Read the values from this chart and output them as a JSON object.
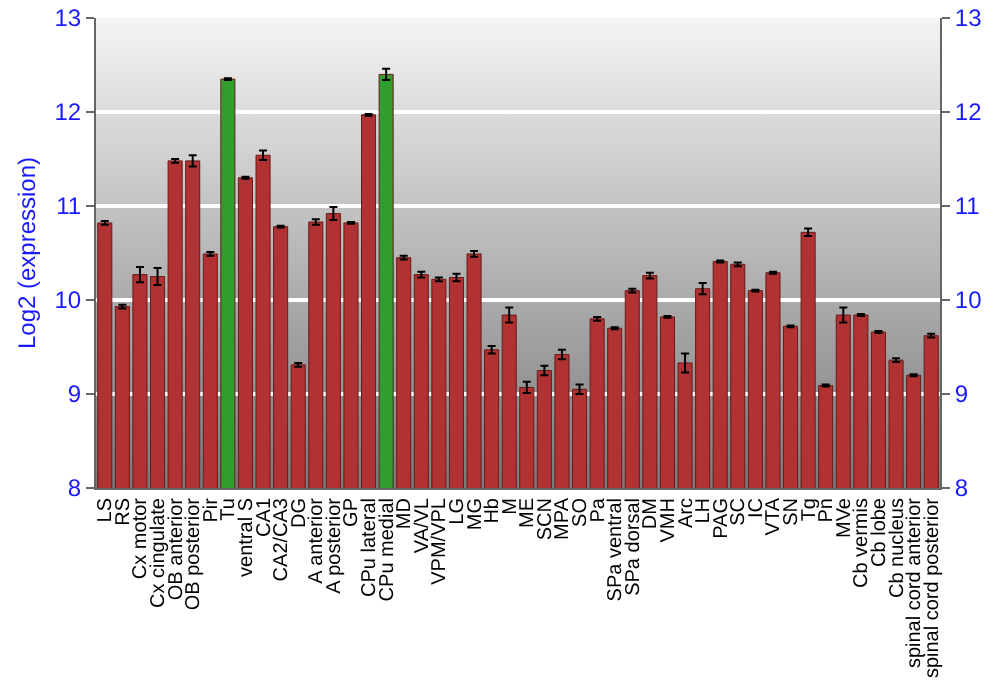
{
  "chart_data": {
    "type": "bar",
    "ylabel": "Log2 (expression)",
    "categories": [
      "LS",
      "RS",
      "Cx motor",
      "Cx cingulate",
      "OB anterior",
      "OB posterior",
      "Pir",
      "Tu",
      "ventral S",
      "CA1",
      "CA2/CA3",
      "DG",
      "A anterior",
      "A posterior",
      "GP",
      "CPu lateral",
      "CPu medial",
      "MD",
      "VA/VL",
      "VPM/VPL",
      "LG",
      "MG",
      "Hb",
      "M",
      "ME",
      "SCN",
      "MPA",
      "SO",
      "Pa",
      "SPa ventral",
      "SPa dorsal",
      "DM",
      "VMH",
      "Arc",
      "LH",
      "PAG",
      "SC",
      "IC",
      "VTA",
      "SN",
      "Tg",
      "Pn",
      "MVe",
      "Cb vermis",
      "Cb lobe",
      "Cb nucleus",
      "spinal cord anterior",
      "spinal cord posterior"
    ],
    "values": [
      10.82,
      9.93,
      10.27,
      10.25,
      11.48,
      11.48,
      10.49,
      12.35,
      11.3,
      11.54,
      10.78,
      9.31,
      10.83,
      10.92,
      10.82,
      11.97,
      12.4,
      10.45,
      10.27,
      10.22,
      10.24,
      10.49,
      9.47,
      9.84,
      9.07,
      9.25,
      9.42,
      9.05,
      9.8,
      9.7,
      10.1,
      10.26,
      9.82,
      9.33,
      10.12,
      10.41,
      10.38,
      10.1,
      10.29,
      9.72,
      10.72,
      9.09,
      9.84,
      9.84,
      9.66,
      9.36,
      9.2,
      9.62
    ],
    "errors": [
      0.02,
      0.02,
      0.08,
      0.09,
      0.02,
      0.06,
      0.02,
      0.01,
      0.01,
      0.05,
      0.01,
      0.02,
      0.03,
      0.07,
      0.01,
      0.01,
      0.06,
      0.02,
      0.03,
      0.02,
      0.04,
      0.03,
      0.04,
      0.08,
      0.06,
      0.05,
      0.05,
      0.05,
      0.02,
      0.01,
      0.02,
      0.03,
      0.01,
      0.1,
      0.06,
      0.01,
      0.02,
      0.01,
      0.01,
      0.01,
      0.04,
      0.01,
      0.08,
      0.01,
      0.01,
      0.02,
      0.01,
      0.02
    ],
    "colors": [
      "#b03232",
      "#b03232",
      "#b03232",
      "#b03232",
      "#b03232",
      "#b03232",
      "#b03232",
      "#2f9e2f",
      "#b03232",
      "#b03232",
      "#b03232",
      "#b03232",
      "#b03232",
      "#b03232",
      "#b03232",
      "#b03232",
      "#2f9e2f",
      "#b03232",
      "#b03232",
      "#b03232",
      "#b03232",
      "#b03232",
      "#b03232",
      "#b03232",
      "#b03232",
      "#b03232",
      "#b03232",
      "#b03232",
      "#b03232",
      "#b03232",
      "#b03232",
      "#b03232",
      "#b03232",
      "#b03232",
      "#b03232",
      "#b03232",
      "#b03232",
      "#b03232",
      "#b03232",
      "#b03232",
      "#b03232",
      "#b03232",
      "#b03232",
      "#b03232",
      "#b03232",
      "#b03232",
      "#b03232",
      "#b03232"
    ],
    "ylim": [
      8,
      13
    ],
    "yticks": [
      8,
      9,
      10,
      11,
      12,
      13
    ],
    "y2lim": [
      8,
      13
    ],
    "y2ticks": [
      8,
      9,
      10,
      11,
      12,
      13
    ],
    "grid": "y"
  }
}
